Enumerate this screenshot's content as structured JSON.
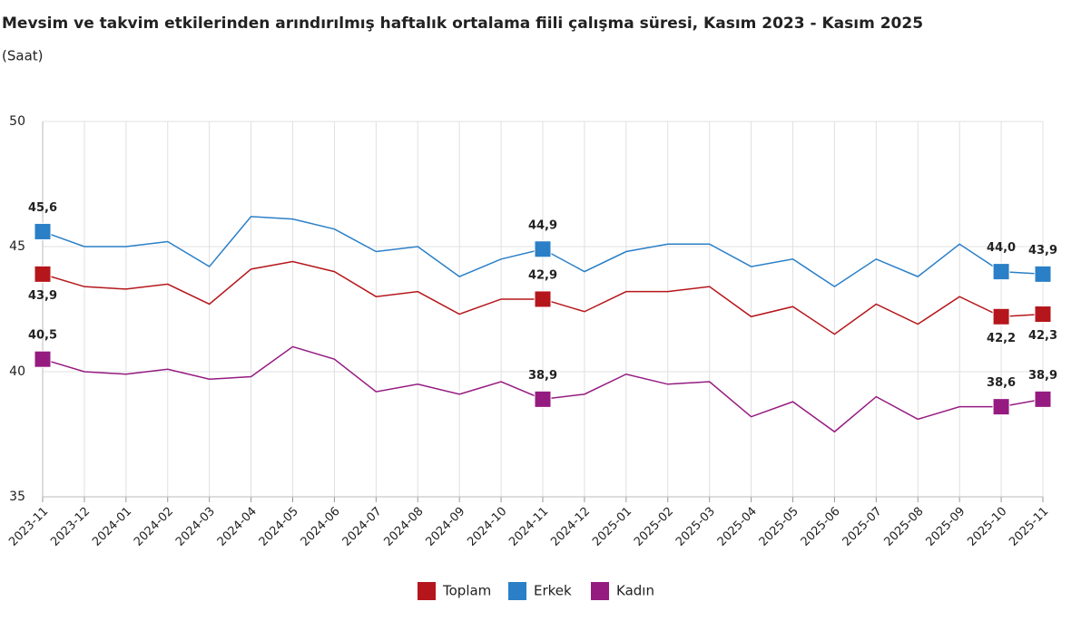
{
  "chart_data": {
    "type": "line",
    "title": "Mevsim ve takvim etkilerinden arındırılmış haftalık ortalama fiili çalışma süresi, Kasım 2023 - Kasım 2025",
    "subtitle": "(Saat)",
    "categories": [
      "2023-11",
      "2023-12",
      "2024-01",
      "2024-02",
      "2024-03",
      "2024-04",
      "2024-05",
      "2024-06",
      "2024-07",
      "2024-08",
      "2024-09",
      "2024-10",
      "2024-11",
      "2024-12",
      "2025-01",
      "2025-02",
      "2025-03",
      "2025-04",
      "2025-05",
      "2025-06",
      "2025-07",
      "2025-08",
      "2025-09",
      "2025-10",
      "2025-11"
    ],
    "series": [
      {
        "name": "Toplam",
        "color": "#b5161b",
        "values": [
          43.9,
          43.4,
          43.3,
          43.5,
          42.7,
          44.1,
          44.4,
          44.0,
          43.0,
          43.2,
          42.3,
          42.9,
          42.9,
          42.4,
          43.2,
          43.2,
          43.4,
          42.2,
          42.6,
          41.5,
          42.7,
          41.9,
          43.0,
          42.2,
          42.3
        ],
        "value_labels": [
          "43,9",
          null,
          null,
          null,
          null,
          null,
          null,
          null,
          null,
          null,
          null,
          null,
          "42,9",
          null,
          null,
          null,
          null,
          null,
          null,
          null,
          null,
          null,
          null,
          "42,2",
          "42,3"
        ]
      },
      {
        "name": "Erkek",
        "color": "#2a7fc7",
        "values": [
          45.6,
          45.0,
          45.0,
          45.2,
          44.2,
          46.2,
          46.1,
          45.7,
          44.8,
          45.0,
          43.8,
          44.5,
          44.9,
          44.0,
          44.8,
          45.1,
          45.1,
          44.2,
          44.5,
          43.4,
          44.5,
          43.8,
          45.1,
          44.0,
          43.9
        ],
        "value_labels": [
          "45,6",
          null,
          null,
          null,
          null,
          null,
          null,
          null,
          null,
          null,
          null,
          null,
          "44,9",
          null,
          null,
          null,
          null,
          null,
          null,
          null,
          null,
          null,
          null,
          "44,0",
          "43,9"
        ]
      },
      {
        "name": "Kadın",
        "color": "#951b81",
        "values": [
          40.5,
          40.0,
          39.9,
          40.1,
          39.7,
          39.8,
          41.0,
          40.5,
          39.2,
          39.5,
          39.1,
          39.6,
          38.9,
          39.1,
          39.9,
          39.5,
          39.6,
          38.2,
          38.8,
          37.6,
          39.0,
          38.1,
          38.6,
          38.6,
          38.9
        ],
        "value_labels": [
          "40,5",
          null,
          null,
          null,
          null,
          null,
          null,
          null,
          null,
          null,
          null,
          null,
          "38,9",
          null,
          null,
          null,
          null,
          null,
          null,
          null,
          null,
          null,
          null,
          "38,6",
          "38,9"
        ]
      }
    ],
    "ylim": [
      35,
      50
    ],
    "yticks": [
      35,
      40,
      45,
      50
    ],
    "grid": true
  }
}
